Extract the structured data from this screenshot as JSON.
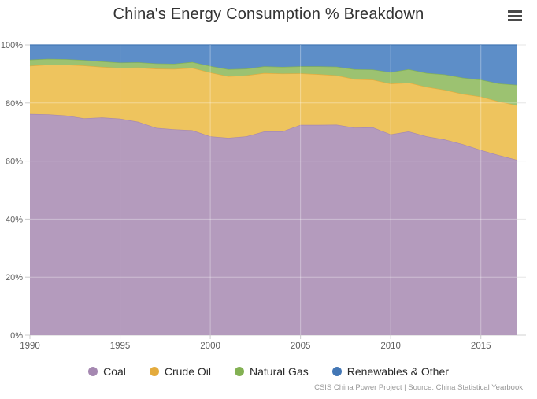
{
  "chart_data": {
    "type": "area",
    "stacking": "percent",
    "title": "China's Energy Consumption % Breakdown",
    "xlabel": "",
    "ylabel": "",
    "xlim": [
      1990,
      2017.5
    ],
    "ylim": [
      0,
      100
    ],
    "grid": true,
    "legend_position": "bottom",
    "x": [
      1990,
      1991,
      1992,
      1993,
      1994,
      1995,
      1996,
      1997,
      1998,
      1999,
      2000,
      2001,
      2002,
      2003,
      2004,
      2005,
      2006,
      2007,
      2008,
      2009,
      2010,
      2011,
      2012,
      2013,
      2014,
      2015,
      2016,
      2017
    ],
    "series": [
      {
        "name": "Coal",
        "color": "#b49bbd",
        "line_color": "#a588b1",
        "values": [
          76.2,
          76.1,
          75.7,
          74.7,
          75.0,
          74.6,
          73.5,
          71.4,
          70.9,
          70.6,
          68.5,
          68.0,
          68.5,
          70.2,
          70.2,
          72.4,
          72.4,
          72.5,
          71.5,
          71.6,
          69.2,
          70.2,
          68.5,
          67.4,
          65.8,
          63.8,
          62.0,
          60.4
        ]
      },
      {
        "name": "Crude Oil",
        "color": "#eec45e",
        "line_color": "#e4ab3d",
        "values": [
          16.6,
          17.1,
          17.5,
          18.2,
          17.4,
          17.5,
          18.7,
          20.4,
          20.8,
          21.5,
          22.0,
          21.2,
          21.0,
          20.1,
          19.9,
          17.8,
          17.5,
          17.0,
          16.7,
          16.4,
          17.4,
          16.8,
          17.0,
          17.1,
          17.3,
          18.4,
          18.5,
          18.8
        ]
      },
      {
        "name": "Natural Gas",
        "color": "#9cc271",
        "line_color": "#83b153",
        "values": [
          2.1,
          2.0,
          1.9,
          1.9,
          1.9,
          1.8,
          1.8,
          1.8,
          1.8,
          2.0,
          2.2,
          2.4,
          2.3,
          2.3,
          2.3,
          2.4,
          2.7,
          3.0,
          3.4,
          3.5,
          4.0,
          4.6,
          4.8,
          5.3,
          5.6,
          5.8,
          6.2,
          7.0
        ]
      },
      {
        "name": "Renewables & Other",
        "color": "#5d8ec8",
        "line_color": "#4377b5",
        "values": [
          5.1,
          4.8,
          4.9,
          5.2,
          5.7,
          6.1,
          6.0,
          6.4,
          6.5,
          5.9,
          7.3,
          8.4,
          8.2,
          7.4,
          7.6,
          7.4,
          7.4,
          7.5,
          8.4,
          8.5,
          9.4,
          8.4,
          9.7,
          10.2,
          11.3,
          12.0,
          13.3,
          13.8
        ]
      }
    ],
    "xticks": {
      "values": [
        1990,
        1995,
        2000,
        2005,
        2010,
        2015
      ],
      "labels": [
        "1990",
        "1995",
        "2000",
        "2005",
        "2010",
        "2015"
      ]
    },
    "yticks": {
      "values": [
        0,
        20,
        40,
        60,
        80,
        100
      ],
      "labels": [
        "0%",
        "20%",
        "40%",
        "60%",
        "80%",
        "100%"
      ]
    }
  },
  "toolbar": {
    "menu_icon": "hamburger-menu-icon"
  },
  "colors": {
    "grid": "#e6e6e6",
    "grid_overlay": "rgba(255,255,255,0.35)",
    "axis_line": "#d0d0d0",
    "tick": "#cccccc",
    "tick_label": "#606060",
    "title": "#333333"
  },
  "credits": "CSIS China Power Project | Source: China Statistical Yearbook"
}
